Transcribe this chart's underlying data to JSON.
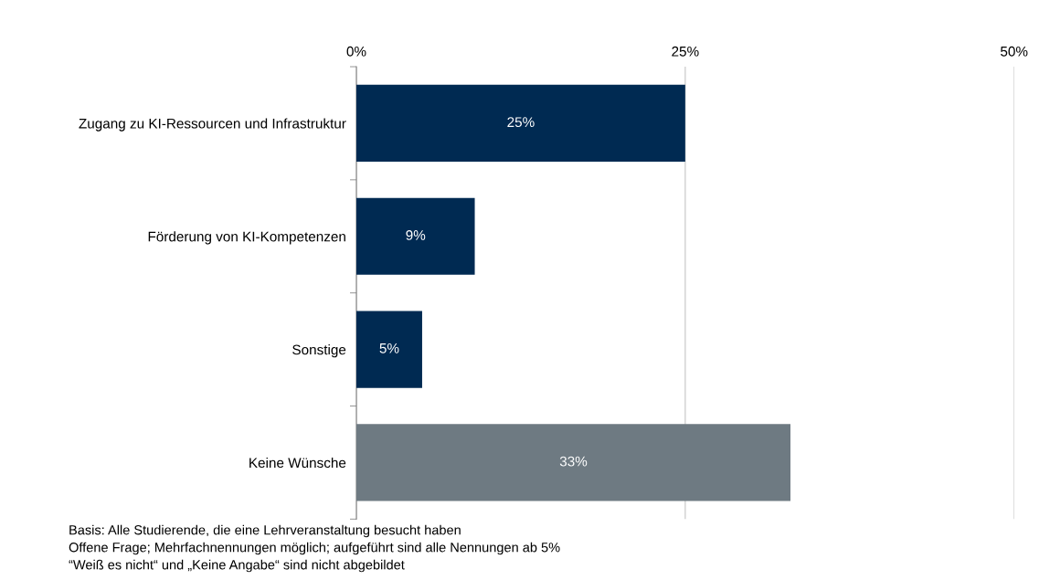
{
  "chart_data": {
    "type": "bar",
    "orientation": "horizontal",
    "categories": [
      "Zugang zu KI-Ressourcen und Infrastruktur",
      "Förderung von KI-Kompetenzen",
      "Sonstige",
      "Keine Wünsche"
    ],
    "values": [
      25,
      9,
      5,
      33
    ],
    "colors": [
      "#002a52",
      "#002a52",
      "#002a52",
      "#6e7a82"
    ],
    "value_labels": [
      "25%",
      "9%",
      "5%",
      "33%"
    ],
    "xlim": [
      0,
      50
    ],
    "xticks": [
      {
        "value": 0,
        "label": "0%"
      },
      {
        "value": 25,
        "label": "25%"
      },
      {
        "value": 50,
        "label": "50%"
      }
    ],
    "grid": "x",
    "annotations": [
      "Basis: Alle Studierende, die eine Lehrveranstaltung besucht haben",
      "Offene Frage; Mehrfachnennungen möglich; aufgeführt sind alle Nennungen ab 5%",
      "“Weiß es nicht“ und „Keine Angabe“ sind nicht abgebildet"
    ]
  }
}
